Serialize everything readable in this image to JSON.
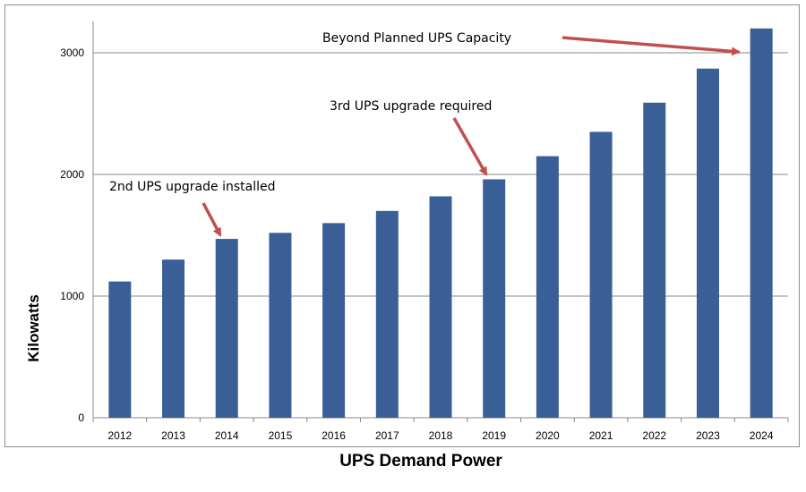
{
  "chart_data": {
    "type": "bar",
    "categories": [
      "2012",
      "2013",
      "2014",
      "2015",
      "2016",
      "2017",
      "2018",
      "2019",
      "2020",
      "2021",
      "2022",
      "2023",
      "2024"
    ],
    "values": [
      1120,
      1300,
      1470,
      1520,
      1600,
      1700,
      1820,
      1960,
      2150,
      2350,
      2590,
      2870,
      3200
    ],
    "title": "",
    "xlabel": "UPS Demand Power",
    "ylabel": "Kilowatts",
    "ylim": [
      0,
      3000
    ],
    "yticks": [
      0,
      1000,
      2000,
      3000
    ],
    "grid": true,
    "bar_color": "#3A5F96",
    "annotation_color": "#C0504D",
    "annotations": [
      {
        "text": "2nd UPS upgrade installed",
        "category": "2014"
      },
      {
        "text": "3rd UPS upgrade required",
        "category": "2019"
      },
      {
        "text": "Beyond Planned UPS Capacity",
        "category": "2024"
      }
    ]
  }
}
